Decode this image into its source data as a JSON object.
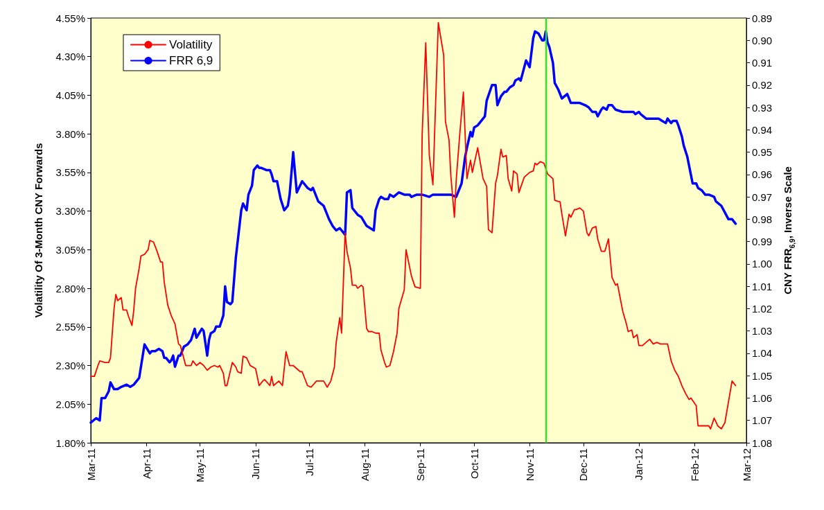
{
  "chart_data": {
    "type": "line",
    "ylabel": "Volatility Of 3-Month CNY Forwards",
    "y2label": "CNY FRR$_{6,9}$, Inverse Scale",
    "xlim": [
      "2011-03-01",
      "2012-03-01"
    ],
    "xticks": [
      {
        "value": "2011-03-01",
        "label": "Mar-11"
      },
      {
        "value": "2011-04-01",
        "label": "Apr-11"
      },
      {
        "value": "2011-05-01",
        "label": "May-11"
      },
      {
        "value": "2011-06-01",
        "label": "Jun-11"
      },
      {
        "value": "2011-07-01",
        "label": "Jul-11"
      },
      {
        "value": "2011-08-01",
        "label": "Aug-11"
      },
      {
        "value": "2011-09-01",
        "label": "Sep-11"
      },
      {
        "value": "2011-10-01",
        "label": "Oct-11"
      },
      {
        "value": "2011-11-01",
        "label": "Nov-11"
      },
      {
        "value": "2011-12-01",
        "label": "Dec-11"
      },
      {
        "value": "2012-01-01",
        "label": "Jan-12"
      },
      {
        "value": "2012-02-01",
        "label": "Feb-12"
      },
      {
        "value": "2012-03-01",
        "label": "Mar-12"
      }
    ],
    "ylim": [
      1.8,
      4.55
    ],
    "yticks": [
      {
        "value": 1.8,
        "label": "1.80%"
      },
      {
        "value": 2.05,
        "label": "2.05%"
      },
      {
        "value": 2.3,
        "label": "2.30%"
      },
      {
        "value": 2.55,
        "label": "2.55%"
      },
      {
        "value": 2.8,
        "label": "2.80%"
      },
      {
        "value": 3.05,
        "label": "3.05%"
      },
      {
        "value": 3.3,
        "label": "3.30%"
      },
      {
        "value": 3.55,
        "label": "3.55%"
      },
      {
        "value": 3.8,
        "label": "3.80%"
      },
      {
        "value": 4.05,
        "label": "4.05%"
      },
      {
        "value": 4.3,
        "label": "4.30%"
      },
      {
        "value": 4.55,
        "label": "4.55%"
      }
    ],
    "y2lim": [
      1.08,
      0.89
    ],
    "y2ticks": [
      {
        "value": 0.89,
        "label": "0.89"
      },
      {
        "value": 0.9,
        "label": "0.90"
      },
      {
        "value": 0.91,
        "label": "0.91"
      },
      {
        "value": 0.92,
        "label": "0.92"
      },
      {
        "value": 0.93,
        "label": "0.93"
      },
      {
        "value": 0.94,
        "label": "0.94"
      },
      {
        "value": 0.95,
        "label": "0.95"
      },
      {
        "value": 0.96,
        "label": "0.96"
      },
      {
        "value": 0.97,
        "label": "0.97"
      },
      {
        "value": 0.98,
        "label": "0.98"
      },
      {
        "value": 0.99,
        "label": "0.99"
      },
      {
        "value": 1.0,
        "label": "1.00"
      },
      {
        "value": 1.01,
        "label": "1.01"
      },
      {
        "value": 1.02,
        "label": "1.02"
      },
      {
        "value": 1.03,
        "label": "1.03"
      },
      {
        "value": 1.04,
        "label": "1.04"
      },
      {
        "value": 1.05,
        "label": "1.05"
      },
      {
        "value": 1.06,
        "label": "1.06"
      },
      {
        "value": 1.07,
        "label": "1.07"
      },
      {
        "value": 1.08,
        "label": "1.08"
      }
    ],
    "grid": false,
    "legend": "top left",
    "marker": "none",
    "line_style": "solid",
    "ref_lines": [
      {
        "axis": "x",
        "value": "2011-11-10",
        "color": "#00ff00"
      }
    ],
    "series": [
      {
        "name": "Volatility",
        "color": "#ff0000",
        "x": [
          "2011-03-01",
          "2011-03-03",
          "2011-03-05",
          "2011-03-06",
          "2011-03-09",
          "2011-03-11",
          "2011-03-12",
          "2011-03-14",
          "2011-03-15",
          "2011-03-16",
          "2011-03-18",
          "2011-03-19",
          "2011-03-21",
          "2011-03-22",
          "2011-03-24",
          "2011-03-25",
          "2011-03-26",
          "2011-03-28",
          "2011-03-29",
          "2011-03-31",
          "2011-04-02",
          "2011-04-03",
          "2011-04-05",
          "2011-04-07",
          "2011-04-09",
          "2011-04-10",
          "2011-04-11",
          "2011-04-13",
          "2011-04-15",
          "2011-04-17",
          "2011-04-19",
          "2011-04-20",
          "2011-04-23",
          "2011-04-26",
          "2011-04-27",
          "2011-04-29",
          "2011-05-01",
          "2011-05-03",
          "2011-05-05",
          "2011-05-07",
          "2011-05-09",
          "2011-05-11",
          "2011-05-12",
          "2011-05-14",
          "2011-05-15",
          "2011-05-16",
          "2011-05-19",
          "2011-05-21",
          "2011-05-22",
          "2011-05-24",
          "2011-05-25",
          "2011-05-27",
          "2011-05-29",
          "2011-06-01",
          "2011-06-03",
          "2011-06-05",
          "2011-06-06",
          "2011-06-09",
          "2011-06-10",
          "2011-06-11",
          "2011-06-14",
          "2011-06-16",
          "2011-06-18",
          "2011-06-20",
          "2011-06-22",
          "2011-06-24",
          "2011-06-26",
          "2011-06-27",
          "2011-06-30",
          "2011-07-02",
          "2011-07-05",
          "2011-07-09",
          "2011-07-11",
          "2011-07-13",
          "2011-07-15",
          "2011-07-16",
          "2011-07-18",
          "2011-07-19",
          "2011-07-21",
          "2011-07-22",
          "2011-07-24",
          "2011-07-25",
          "2011-07-27",
          "2011-07-28",
          "2011-07-30",
          "2011-07-31",
          "2011-08-02",
          "2011-08-03",
          "2011-08-05",
          "2011-08-07",
          "2011-08-09",
          "2011-08-10",
          "2011-08-12",
          "2011-08-13",
          "2011-08-15",
          "2011-08-17",
          "2011-08-19",
          "2011-08-20",
          "2011-08-23",
          "2011-08-24",
          "2011-08-27",
          "2011-08-29",
          "2011-09-01",
          "2011-09-02",
          "2011-09-04",
          "2011-09-06",
          "2011-09-08",
          "2011-09-11",
          "2011-09-14",
          "2011-09-15",
          "2011-09-17",
          "2011-09-18",
          "2011-09-20",
          "2011-09-21",
          "2011-09-23",
          "2011-09-25",
          "2011-09-27",
          "2011-09-29",
          "2011-09-30",
          "2011-10-03",
          "2011-10-06",
          "2011-10-08",
          "2011-10-09",
          "2011-10-11",
          "2011-10-13",
          "2011-10-14",
          "2011-10-16",
          "2011-10-17",
          "2011-10-19",
          "2011-10-20",
          "2011-10-22",
          "2011-10-23",
          "2011-10-25",
          "2011-10-26",
          "2011-10-29",
          "2011-11-01",
          "2011-11-03",
          "2011-11-04",
          "2011-11-05",
          "2011-11-07",
          "2011-11-09",
          "2011-11-11",
          "2011-11-12",
          "2011-11-14",
          "2011-11-15",
          "2011-11-18",
          "2011-11-19",
          "2011-11-21",
          "2011-11-23",
          "2011-11-24",
          "2011-11-26",
          "2011-11-27",
          "2011-11-29",
          "2011-12-01",
          "2011-12-03",
          "2011-12-04",
          "2011-12-06",
          "2011-12-08",
          "2011-12-09",
          "2011-12-11",
          "2011-12-13",
          "2011-12-15",
          "2011-12-17",
          "2011-12-19",
          "2011-12-20",
          "2011-12-23",
          "2011-12-25",
          "2011-12-26",
          "2011-12-28",
          "2011-12-29",
          "2011-12-31",
          "2012-01-01",
          "2012-01-03",
          "2012-01-05",
          "2012-01-07",
          "2012-01-09",
          "2012-01-11",
          "2012-01-13",
          "2012-01-15",
          "2012-01-17",
          "2012-01-19",
          "2012-01-21",
          "2012-01-23",
          "2012-01-25",
          "2012-01-27",
          "2012-01-29",
          "2012-01-30",
          "2012-02-02",
          "2012-02-03",
          "2012-02-05",
          "2012-02-09",
          "2012-02-10",
          "2012-02-12",
          "2012-02-14",
          "2012-02-16",
          "2012-02-18",
          "2012-02-22",
          "2012-02-24"
        ],
        "values": [
          2.23,
          2.23,
          2.3,
          2.33,
          2.32,
          2.32,
          2.35,
          2.67,
          2.76,
          2.72,
          2.74,
          2.66,
          2.66,
          2.62,
          2.56,
          2.66,
          2.8,
          2.93,
          3.01,
          3.02,
          3.05,
          3.11,
          3.1,
          3.04,
          2.97,
          2.97,
          2.84,
          2.69,
          2.62,
          2.57,
          2.44,
          2.43,
          2.3,
          2.3,
          2.33,
          2.3,
          2.32,
          2.3,
          2.27,
          2.29,
          2.3,
          2.29,
          2.3,
          2.25,
          2.17,
          2.17,
          2.32,
          2.29,
          2.26,
          2.25,
          2.36,
          2.35,
          2.3,
          2.28,
          2.17,
          2.2,
          2.21,
          2.17,
          2.23,
          2.17,
          2.2,
          2.17,
          2.39,
          2.3,
          2.3,
          2.28,
          2.26,
          2.26,
          2.17,
          2.16,
          2.2,
          2.2,
          2.16,
          2.2,
          2.29,
          2.45,
          2.61,
          2.51,
          3.16,
          3.04,
          2.93,
          2.82,
          2.82,
          2.8,
          2.82,
          2.81,
          2.54,
          2.52,
          2.52,
          2.51,
          2.51,
          2.4,
          2.32,
          2.29,
          2.3,
          2.39,
          2.51,
          2.67,
          2.79,
          3.05,
          2.88,
          2.81,
          2.8,
          3.8,
          4.39,
          3.66,
          3.47,
          4.52,
          4.31,
          3.88,
          3.76,
          3.53,
          3.26,
          3.5,
          3.8,
          4.07,
          3.51,
          3.63,
          3.55,
          3.71,
          3.51,
          3.46,
          3.18,
          3.16,
          3.48,
          3.53,
          3.7,
          3.65,
          3.66,
          3.51,
          3.43,
          3.56,
          3.54,
          3.42,
          3.52,
          3.55,
          3.56,
          3.61,
          3.6,
          3.62,
          3.61,
          3.54,
          3.53,
          3.51,
          3.37,
          3.36,
          3.28,
          3.14,
          3.28,
          3.26,
          3.31,
          3.31,
          3.32,
          3.3,
          3.16,
          3.14,
          3.19,
          3.2,
          3.12,
          3.04,
          3.04,
          3.12,
          2.87,
          2.82,
          2.83,
          2.65,
          2.57,
          2.52,
          2.53,
          2.48,
          2.5,
          2.43,
          2.43,
          2.45,
          2.47,
          2.44,
          2.45,
          2.44,
          2.44,
          2.44,
          2.33,
          2.27,
          2.23,
          2.17,
          2.12,
          2.08,
          2.09,
          2.04,
          1.91,
          1.91,
          1.91,
          1.89,
          1.96,
          1.91,
          1.89,
          1.93,
          2.2,
          2.17
        ]
      },
      {
        "name": "FRR 6,9",
        "color": "#0000ff",
        "axis": "y2",
        "x": [
          "2011-03-01",
          "2011-03-04",
          "2011-03-06",
          "2011-03-07",
          "2011-03-09",
          "2011-03-11",
          "2011-03-12",
          "2011-03-14",
          "2011-03-16",
          "2011-03-18",
          "2011-03-21",
          "2011-03-23",
          "2011-03-25",
          "2011-03-28",
          "2011-03-31",
          "2011-04-03",
          "2011-04-04",
          "2011-04-06",
          "2011-04-08",
          "2011-04-10",
          "2011-04-11",
          "2011-04-12",
          "2011-04-14",
          "2011-04-15",
          "2011-04-16",
          "2011-04-17",
          "2011-04-19",
          "2011-04-20",
          "2011-04-22",
          "2011-04-24",
          "2011-04-26",
          "2011-04-28",
          "2011-04-29",
          "2011-05-02",
          "2011-05-03",
          "2011-05-05",
          "2011-05-06",
          "2011-05-07",
          "2011-05-09",
          "2011-05-10",
          "2011-05-12",
          "2011-05-14",
          "2011-05-15",
          "2011-05-16",
          "2011-05-18",
          "2011-05-19",
          "2011-05-21",
          "2011-05-24",
          "2011-05-25",
          "2011-05-27",
          "2011-05-28",
          "2011-05-30",
          "2011-05-31",
          "2011-06-02",
          "2011-06-03",
          "2011-06-04",
          "2011-06-07",
          "2011-06-09",
          "2011-06-10",
          "2011-06-11",
          "2011-06-13",
          "2011-06-15",
          "2011-06-17",
          "2011-06-19",
          "2011-06-20",
          "2011-06-22",
          "2011-06-24",
          "2011-06-27",
          "2011-06-30",
          "2011-07-02",
          "2011-07-03",
          "2011-07-06",
          "2011-07-09",
          "2011-07-11",
          "2011-07-12",
          "2011-07-14",
          "2011-07-16",
          "2011-07-18",
          "2011-07-21",
          "2011-07-22",
          "2011-07-24",
          "2011-07-25",
          "2011-07-28",
          "2011-07-30",
          "2011-08-02",
          "2011-08-04",
          "2011-08-06",
          "2011-08-07",
          "2011-08-09",
          "2011-08-10",
          "2011-08-12",
          "2011-08-14",
          "2011-08-15",
          "2011-08-17",
          "2011-08-20",
          "2011-08-23",
          "2011-08-26",
          "2011-08-27",
          "2011-08-30",
          "2011-09-02",
          "2011-09-06",
          "2011-09-08",
          "2011-09-18",
          "2011-09-21",
          "2011-09-24",
          "2011-09-26",
          "2011-09-27",
          "2011-09-29",
          "2011-09-30",
          "2011-10-01",
          "2011-10-03",
          "2011-10-05",
          "2011-10-07",
          "2011-10-08",
          "2011-10-11",
          "2011-10-13",
          "2011-10-14",
          "2011-10-16",
          "2011-10-18",
          "2011-10-19",
          "2011-10-21",
          "2011-10-23",
          "2011-10-24",
          "2011-10-26",
          "2011-10-27",
          "2011-10-30",
          "2011-11-01",
          "2011-11-03",
          "2011-11-04",
          "2011-11-06",
          "2011-11-08",
          "2011-11-09",
          "2011-11-10",
          "2011-11-11",
          "2011-11-12",
          "2011-11-14",
          "2011-11-15",
          "2011-11-17",
          "2011-11-19",
          "2011-11-22",
          "2011-11-24",
          "2011-11-27",
          "2011-11-29",
          "2011-12-02",
          "2011-12-04",
          "2011-12-06",
          "2011-12-08",
          "2011-12-09",
          "2011-12-11",
          "2011-12-12",
          "2011-12-14",
          "2011-12-15",
          "2011-12-17",
          "2011-12-19",
          "2011-12-23",
          "2011-12-25",
          "2011-12-29",
          "2011-12-30",
          "2012-01-01",
          "2012-01-02",
          "2012-01-05",
          "2012-01-12",
          "2012-01-14",
          "2012-01-16",
          "2012-01-17",
          "2012-01-19",
          "2012-01-20",
          "2012-01-22",
          "2012-01-23",
          "2012-01-25",
          "2012-01-26",
          "2012-01-28",
          "2012-01-30",
          "2012-01-31",
          "2012-02-02",
          "2012-02-03",
          "2012-02-05",
          "2012-02-07",
          "2012-02-09",
          "2012-02-12",
          "2012-02-13",
          "2012-02-16",
          "2012-02-18",
          "2012-02-20",
          "2012-02-22",
          "2012-02-24"
        ],
        "values": [
          1.071,
          1.069,
          1.07,
          1.06,
          1.06,
          1.057,
          1.053,
          1.056,
          1.056,
          1.055,
          1.054,
          1.055,
          1.054,
          1.051,
          1.036,
          1.04,
          1.039,
          1.039,
          1.038,
          1.039,
          1.042,
          1.042,
          1.044,
          1.043,
          1.041,
          1.046,
          1.041,
          1.041,
          1.037,
          1.036,
          1.034,
          1.029,
          1.033,
          1.029,
          1.03,
          1.041,
          1.034,
          1.031,
          1.03,
          1.028,
          1.028,
          1.023,
          1.01,
          1.017,
          1.018,
          1.017,
          0.997,
          0.976,
          0.973,
          0.976,
          0.969,
          0.965,
          0.958,
          0.956,
          0.957,
          0.957,
          0.958,
          0.958,
          0.96,
          0.963,
          0.963,
          0.971,
          0.976,
          0.974,
          0.969,
          0.95,
          0.968,
          0.963,
          0.966,
          0.967,
          0.966,
          0.972,
          0.974,
          0.978,
          0.98,
          0.983,
          0.985,
          0.984,
          0.987,
          0.968,
          0.967,
          0.975,
          0.978,
          0.979,
          0.983,
          0.984,
          0.985,
          0.976,
          0.971,
          0.97,
          0.971,
          0.971,
          0.969,
          0.97,
          0.968,
          0.969,
          0.969,
          0.97,
          0.969,
          0.969,
          0.97,
          0.969,
          0.969,
          0.97,
          0.964,
          0.952,
          0.948,
          0.941,
          0.943,
          0.939,
          0.938,
          0.936,
          0.934,
          0.927,
          0.92,
          0.92,
          0.929,
          0.925,
          0.923,
          0.923,
          0.921,
          0.92,
          0.918,
          0.917,
          0.918,
          0.909,
          0.912,
          0.899,
          0.896,
          0.897,
          0.9,
          0.9,
          0.896,
          0.901,
          0.903,
          0.91,
          0.919,
          0.922,
          0.926,
          0.924,
          0.928,
          0.928,
          0.928,
          0.929,
          0.93,
          0.932,
          0.932,
          0.934,
          0.931,
          0.93,
          0.931,
          0.929,
          0.929,
          0.931,
          0.932,
          0.932,
          0.932,
          0.933,
          0.932,
          0.933,
          0.935,
          0.935,
          0.936,
          0.937,
          0.935,
          0.937,
          0.936,
          0.936,
          0.938,
          0.943,
          0.947,
          0.952,
          0.96,
          0.964,
          0.964,
          0.966,
          0.967,
          0.969,
          0.969,
          0.97,
          0.972,
          0.974,
          0.977,
          0.98,
          0.98,
          0.982
        ]
      }
    ]
  }
}
